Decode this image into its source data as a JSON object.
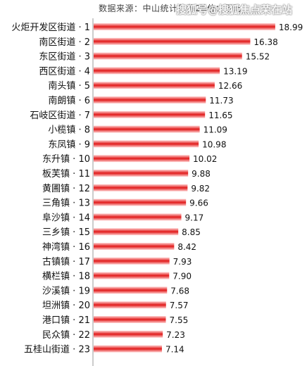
{
  "header": {
    "source_text": "数据来源：中山统计年鉴2",
    "unit_text": "单位：万元",
    "watermark": "搜狐号@搜狐焦点荣在站"
  },
  "colors": {
    "bar_light": "#ffd0d0",
    "bar_dark": "#e11a1a",
    "axis": "#999999"
  },
  "chart_data": {
    "type": "bar",
    "orientation": "horizontal",
    "categories": [
      "火炬开发区街道 · 1",
      "南区街道 · 2",
      "东区街道 · 3",
      "西区街道 · 4",
      "南头镇 · 5",
      "南朗镇 · 6",
      "石岐区街道 · 7",
      "小榄镇 · 8",
      "东凤镇 · 9",
      "东升镇 · 10",
      "板芙镇 · 11",
      "黄圃镇 · 12",
      "三角镇 · 13",
      "阜沙镇 · 14",
      "三乡镇 · 15",
      "神湾镇 · 16",
      "古镇镇 · 17",
      "横栏镇 · 18",
      "沙溪镇 · 19",
      "坦洲镇 · 20",
      "港口镇 · 21",
      "民众镇 · 22",
      "五桂山街道 · 23"
    ],
    "values": [
      18.99,
      16.38,
      15.52,
      13.19,
      12.66,
      11.73,
      11.65,
      11.09,
      10.98,
      10.02,
      9.88,
      9.82,
      9.66,
      9.17,
      8.85,
      8.42,
      7.93,
      7.9,
      7.68,
      7.57,
      7.55,
      7.23,
      7.14
    ],
    "value_labels": [
      "18.99",
      "16.38",
      "15.52",
      "13.19",
      "12.66",
      "11.73",
      "11.65",
      "11.09",
      "10.98",
      "10.02",
      "9.88",
      "9.82",
      "9.66",
      "9.17",
      "8.85",
      "8.42",
      "7.93",
      "7.90",
      "7.68",
      "7.57",
      "7.55",
      "7.23",
      "7.14"
    ],
    "xlim": [
      0,
      19
    ],
    "grid": false,
    "legend": "none"
  }
}
